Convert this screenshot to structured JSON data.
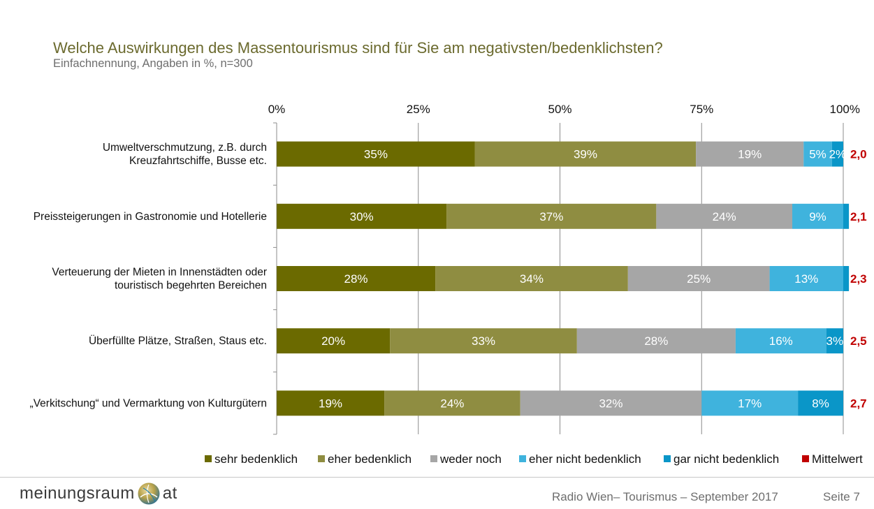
{
  "header": {
    "title": "Welche Auswirkungen des Massentourismus sind für Sie am negativsten/bedenklichsten?",
    "subtitle": "Einfachnennung, Angaben in %, n=300"
  },
  "chart_data": {
    "type": "bar",
    "orientation": "horizontal",
    "stacked": true,
    "xlim": [
      0,
      100
    ],
    "x_ticks": [
      "0%",
      "25%",
      "50%",
      "75%",
      "100%"
    ],
    "categories": [
      [
        "Umweltverschmutzung, z.B. durch",
        "Kreuzfahrtschiffe, Busse etc."
      ],
      [
        "Preissteigerungen in Gastronomie und Hotellerie"
      ],
      [
        "Verteuerung der Mieten in Innenstädten oder",
        "touristisch begehrten Bereichen"
      ],
      [
        "Überfüllte Plätze, Straßen, Staus etc."
      ],
      [
        "„Verkitschung“ und Vermarktung von Kulturgütern"
      ]
    ],
    "series": [
      {
        "name": "sehr bedenklich",
        "color": "#6b6a00",
        "values": [
          35,
          30,
          28,
          20,
          19
        ],
        "labels": [
          "35%",
          "30%",
          "28%",
          "20%",
          "19%"
        ]
      },
      {
        "name": "eher bedenklich",
        "color": "#8f8d41",
        "values": [
          39,
          37,
          34,
          33,
          24
        ],
        "labels": [
          "39%",
          "37%",
          "34%",
          "33%",
          "24%"
        ]
      },
      {
        "name": "weder noch",
        "color": "#a6a6a6",
        "values": [
          19,
          24,
          25,
          28,
          32
        ],
        "labels": [
          "19%",
          "24%",
          "25%",
          "28%",
          "32%"
        ]
      },
      {
        "name": "eher nicht bedenklich",
        "color": "#3fb3dd",
        "values": [
          5,
          9,
          13,
          16,
          17
        ],
        "labels": [
          "5%",
          "9%",
          "13%",
          "16%",
          "17%"
        ]
      },
      {
        "name": "gar nicht bedenklich",
        "color": "#0a96c8",
        "values": [
          2,
          1,
          1,
          3,
          8
        ],
        "labels": [
          "2%",
          "",
          "",
          "3%",
          "8%"
        ]
      }
    ],
    "mean": {
      "name": "Mittelwert",
      "color": "#c00000",
      "values": [
        "2,0",
        "2,1",
        "2,3",
        "2,5",
        "2,7"
      ]
    }
  },
  "footer": {
    "logo_left": "meinungsraum",
    "logo_right": "at",
    "source": "Radio Wien– Tourismus – September 2017",
    "page": "Seite 7"
  }
}
